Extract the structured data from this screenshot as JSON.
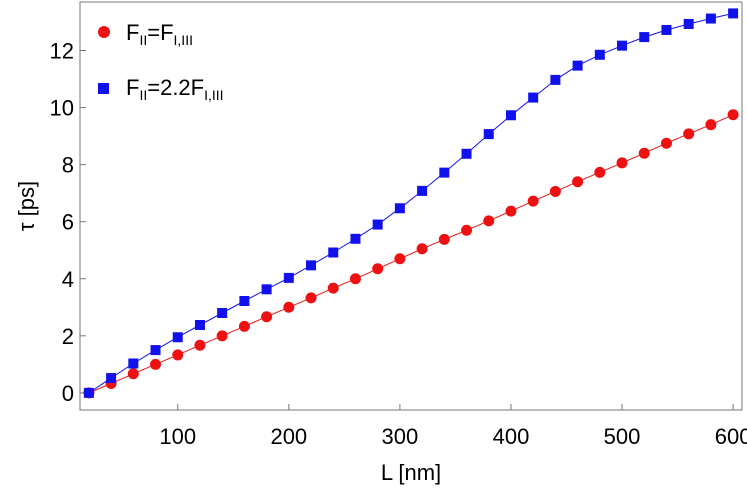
{
  "chart_data": {
    "type": "scatter",
    "xlabel": "L  [nm]",
    "ylabel": "τ  [ps]",
    "xlim": [
      12,
      608
    ],
    "ylim": [
      -0.6,
      13.7
    ],
    "xticks": [
      100,
      200,
      300,
      400,
      500,
      600
    ],
    "yticks": [
      0,
      2,
      4,
      6,
      8,
      10,
      12
    ],
    "grid": false,
    "legend_position": "top-left",
    "series": [
      {
        "name": "F_II=F_I,III",
        "legend": {
          "main1": "F",
          "sub1": "II",
          "main2": "=F",
          "sub2": "I,III"
        },
        "marker": "circle",
        "color": "#ee1111",
        "x": [
          20,
          40,
          60,
          80,
          100,
          120,
          140,
          160,
          180,
          200,
          220,
          240,
          260,
          280,
          300,
          320,
          340,
          360,
          380,
          400,
          420,
          440,
          460,
          480,
          500,
          520,
          540,
          560,
          580,
          600
        ],
        "values": [
          0.0,
          0.33,
          0.67,
          1.0,
          1.33,
          1.67,
          2.0,
          2.33,
          2.67,
          3.0,
          3.33,
          3.67,
          4.0,
          4.35,
          4.7,
          5.05,
          5.38,
          5.7,
          6.03,
          6.37,
          6.72,
          7.06,
          7.4,
          7.73,
          8.06,
          8.4,
          8.75,
          9.08,
          9.4,
          9.75
        ]
      },
      {
        "name": "F_II=2.2F_I,III",
        "legend": {
          "main1": "F",
          "sub1": "II",
          "main2": "=2.2F",
          "sub2": "I,III"
        },
        "marker": "square",
        "color": "#1111ee",
        "x": [
          20,
          40,
          60,
          80,
          100,
          120,
          140,
          160,
          180,
          200,
          220,
          240,
          260,
          280,
          300,
          320,
          340,
          360,
          380,
          400,
          420,
          440,
          460,
          480,
          500,
          520,
          540,
          560,
          580,
          600
        ],
        "values": [
          0.0,
          0.52,
          1.03,
          1.5,
          1.95,
          2.38,
          2.8,
          3.22,
          3.63,
          4.03,
          4.47,
          4.92,
          5.4,
          5.9,
          6.47,
          7.08,
          7.72,
          8.38,
          9.07,
          9.73,
          10.35,
          10.97,
          11.47,
          11.85,
          12.17,
          12.47,
          12.72,
          12.93,
          13.12,
          13.3
        ]
      }
    ]
  }
}
